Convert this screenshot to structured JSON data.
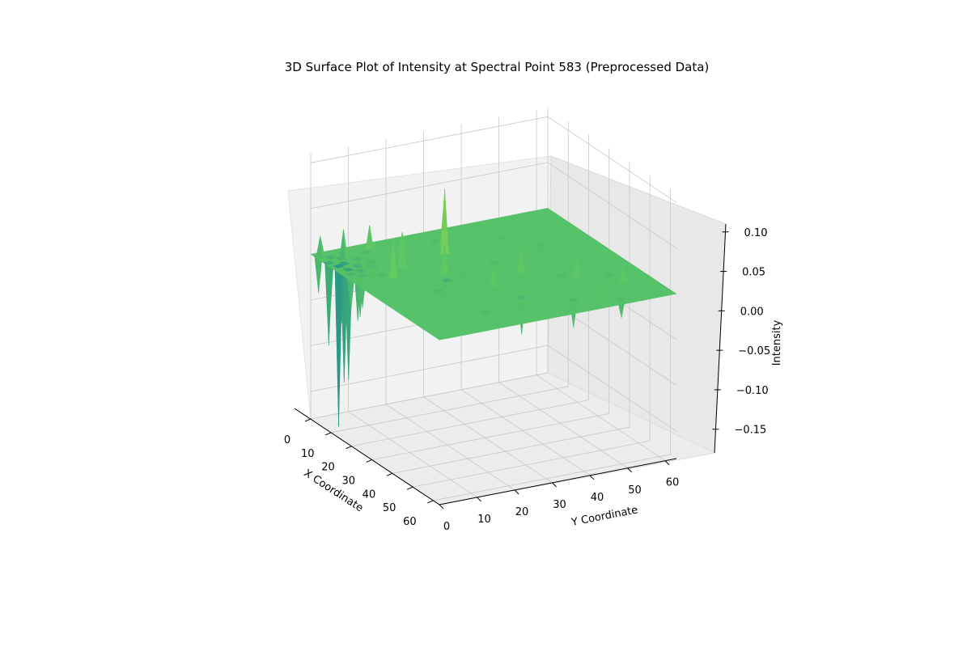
{
  "chart_data": {
    "type": "surface3d",
    "title": "3D Surface Plot of Intensity at Spectral Point 583 (Preprocessed Data)",
    "xlabel": "X Coordinate",
    "ylabel": "Y Coordinate",
    "zlabel": "Intensity",
    "xlim": [
      0,
      63
    ],
    "ylim": [
      0,
      63
    ],
    "zlim": [
      -0.18,
      0.11
    ],
    "xticks": [
      0,
      10,
      20,
      30,
      40,
      50,
      60
    ],
    "yticks": [
      0,
      10,
      20,
      30,
      40,
      50,
      60
    ],
    "zticks": [
      0.1,
      0.05,
      0.0,
      -0.05,
      -0.1,
      -0.15
    ],
    "ztick_labels": [
      "0.10",
      "0.05",
      "0.00",
      "−0.05",
      "−0.10",
      "−0.15"
    ],
    "colormap": "viridis",
    "baseline_intensity": 0.0,
    "grid": true,
    "features": [
      {
        "x": 10,
        "y": 2,
        "z": -0.175
      },
      {
        "x": 9,
        "y": 4,
        "z": -0.13
      },
      {
        "x": 13,
        "y": 3,
        "z": -0.12
      },
      {
        "x": 7,
        "y": 1,
        "z": -0.09
      },
      {
        "x": 6,
        "y": 5,
        "z": -0.07
      },
      {
        "x": 4,
        "y": 3,
        "z": -0.06
      },
      {
        "x": 12,
        "y": 6,
        "z": -0.06
      },
      {
        "x": 15,
        "y": 5,
        "z": -0.05
      },
      {
        "x": 3,
        "y": 7,
        "z": -0.05
      },
      {
        "x": 16,
        "y": 2,
        "z": -0.04
      },
      {
        "x": 2,
        "y": 1,
        "z": -0.04
      },
      {
        "x": 8,
        "y": 8,
        "z": -0.04
      },
      {
        "x": 18,
        "y": 4,
        "z": -0.035
      },
      {
        "x": 11,
        "y": 10,
        "z": -0.03
      },
      {
        "x": 5,
        "y": 12,
        "z": -0.03
      },
      {
        "x": 20,
        "y": 8,
        "z": -0.025
      },
      {
        "x": 14,
        "y": 9,
        "z": -0.025
      },
      {
        "x": 30,
        "y": 20,
        "z": -0.06
      },
      {
        "x": 48,
        "y": 30,
        "z": -0.04
      },
      {
        "x": 55,
        "y": 40,
        "z": -0.03
      },
      {
        "x": 40,
        "y": 45,
        "z": -0.025
      },
      {
        "x": 25,
        "y": 35,
        "z": -0.02
      },
      {
        "x": 35,
        "y": 15,
        "z": -0.03
      },
      {
        "x": 60,
        "y": 50,
        "z": -0.02
      },
      {
        "x": 20,
        "y": 50,
        "z": -0.02
      },
      {
        "x": 45,
        "y": 55,
        "z": -0.02
      },
      {
        "x": 6,
        "y": 30,
        "z": -0.02
      },
      {
        "x": 12,
        "y": 45,
        "z": -0.015
      },
      {
        "x": 28,
        "y": 25,
        "z": -0.015
      },
      {
        "x": 52,
        "y": 18,
        "z": -0.02
      },
      {
        "x": 14,
        "y": 28,
        "z": 0.07
      },
      {
        "x": 10,
        "y": 30,
        "z": 0.05
      },
      {
        "x": 22,
        "y": 10,
        "z": 0.04
      },
      {
        "x": 17,
        "y": 15,
        "z": 0.035
      },
      {
        "x": 5,
        "y": 6,
        "z": 0.03
      },
      {
        "x": 1,
        "y": 2,
        "z": 0.02
      },
      {
        "x": 3,
        "y": 14,
        "z": 0.025
      },
      {
        "x": 25,
        "y": 22,
        "z": 0.03
      },
      {
        "x": 33,
        "y": 38,
        "z": 0.025
      },
      {
        "x": 42,
        "y": 48,
        "z": 0.02
      },
      {
        "x": 50,
        "y": 56,
        "z": 0.02
      },
      {
        "x": 8,
        "y": 20,
        "z": 0.02
      },
      {
        "x": 38,
        "y": 28,
        "z": 0.02
      },
      {
        "x": 58,
        "y": 45,
        "z": 0.015
      }
    ]
  }
}
